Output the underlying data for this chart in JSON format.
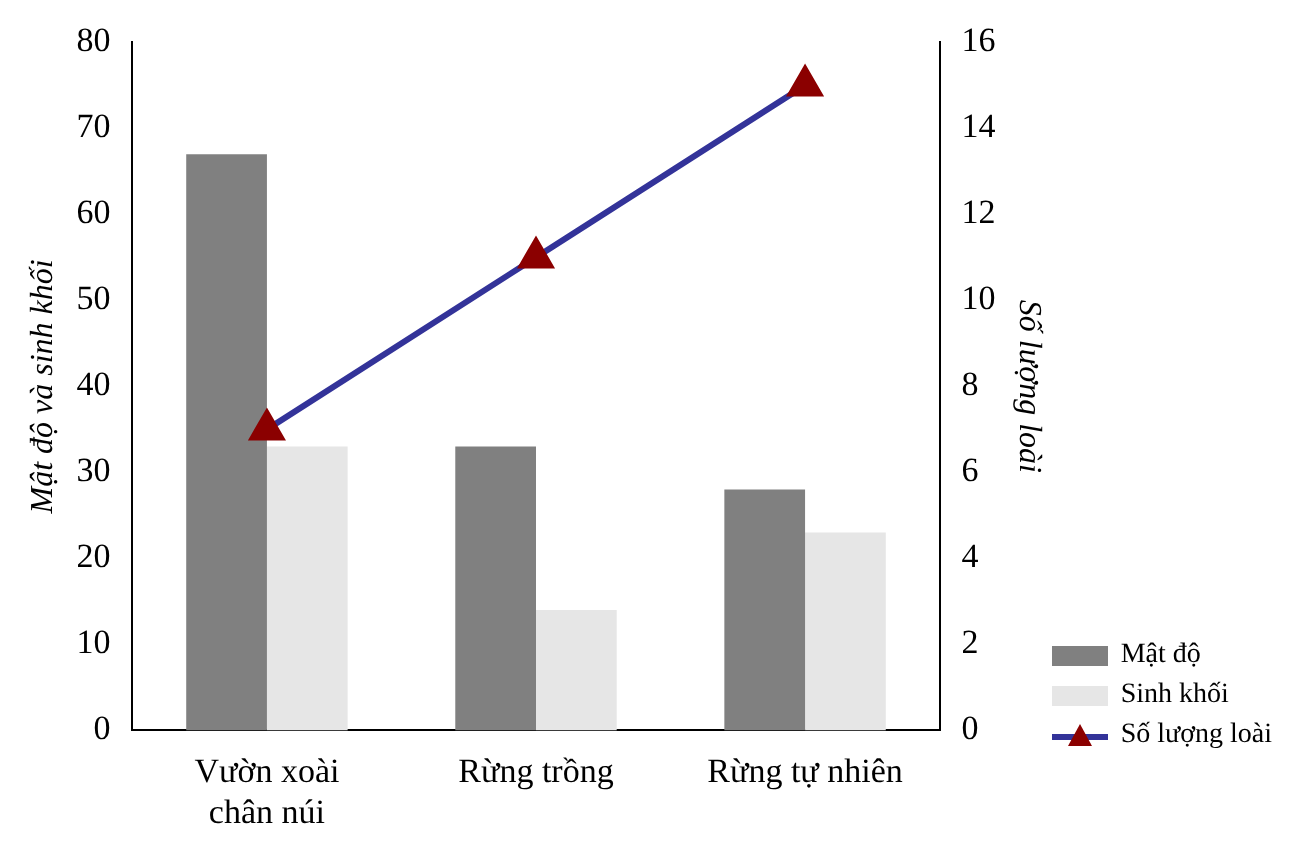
{
  "chart_data": {
    "type": "bar",
    "categories": [
      "Vườn xoài chân núi",
      "Rừng trồng",
      "Rừng tự nhiên"
    ],
    "ylabel": "Mật độ và sinh khối",
    "y2label": "Số lượng loài",
    "series": [
      {
        "name": "Mật độ",
        "color": "#808080",
        "values": [
          67,
          33,
          28
        ]
      },
      {
        "name": "Sinh khối",
        "color": "#e6e6e6",
        "values": [
          33,
          14,
          23
        ]
      },
      {
        "name": "Số lượng loài",
        "type": "line",
        "axis": "y2",
        "color": "#333399",
        "marker": "triangle",
        "values": [
          7,
          11,
          15
        ]
      }
    ],
    "ylim": [
      0,
      80
    ],
    "yticks": [
      0,
      10,
      20,
      30,
      40,
      50,
      60,
      70,
      80
    ],
    "y2lim": [
      0,
      16
    ],
    "y2ticks": [
      0,
      2,
      4,
      6,
      8,
      10,
      12,
      14,
      16
    ],
    "grid": false,
    "legend": "bottom right"
  }
}
